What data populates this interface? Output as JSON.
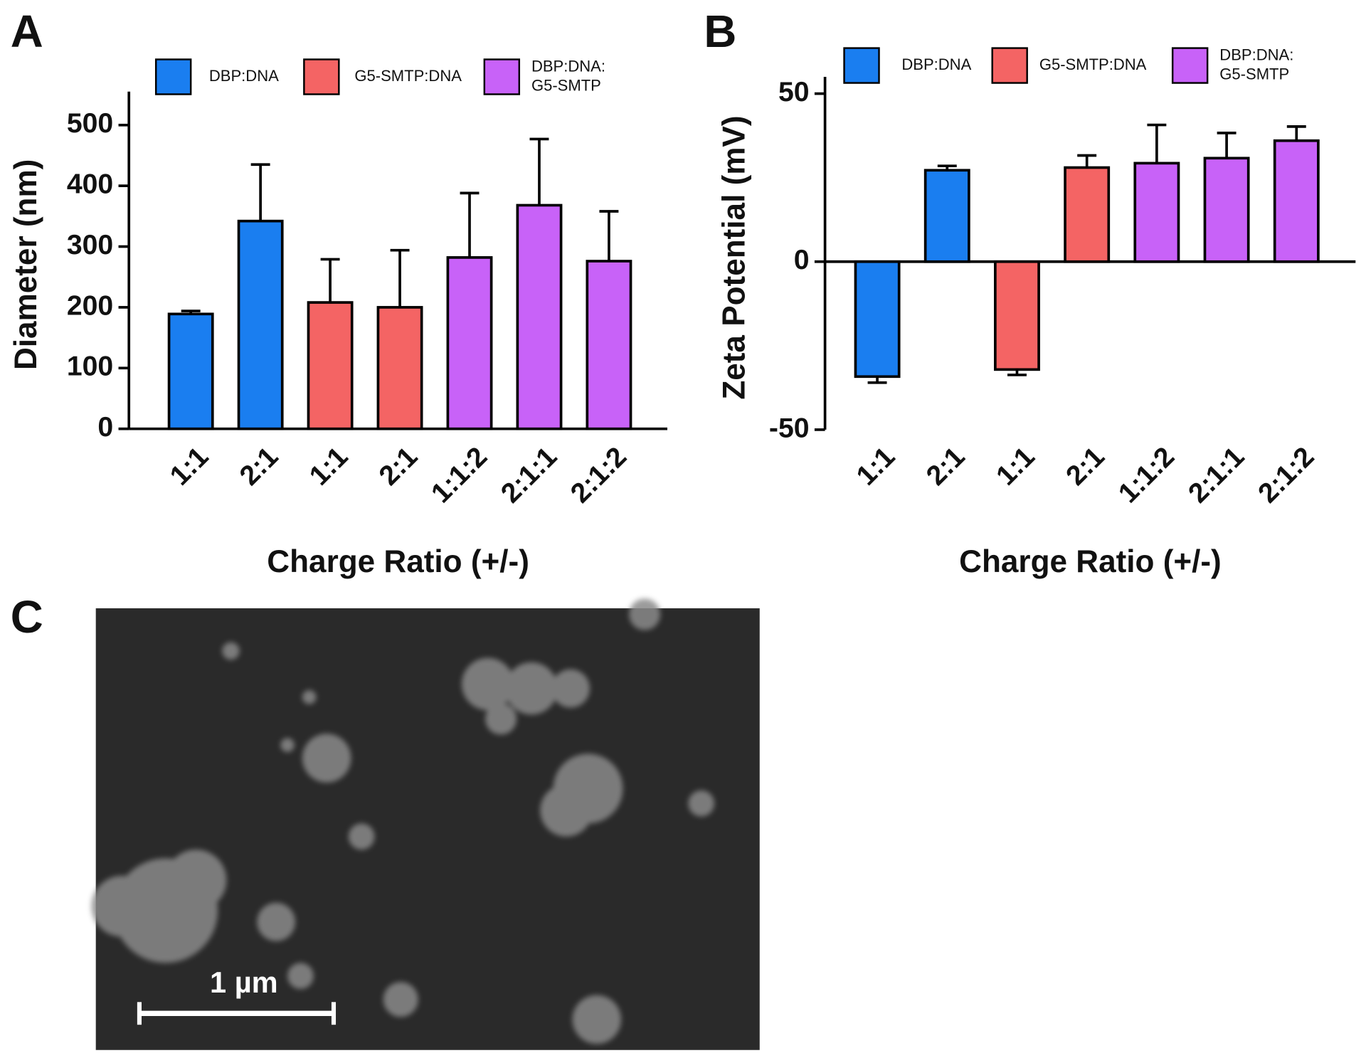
{
  "chart_data": [
    {
      "type": "bar",
      "panel_label": "A",
      "y_label": "Diameter (nm)",
      "x_label": "Charge Ratio (+/-)",
      "categories": [
        "1:1",
        "2:1",
        "1:1",
        "2:1",
        "1:1:2",
        "2:1:1",
        "2:1:2"
      ],
      "series": [
        {
          "name": "DBP:DNA",
          "color": "#1a7ef0",
          "values": [
            189,
            342,
            null,
            null,
            null,
            null,
            null
          ],
          "errors": [
            5,
            93,
            null,
            null,
            null,
            null,
            null
          ]
        },
        {
          "name": "G5-SMTP:DNA",
          "color": "#f46464",
          "values": [
            null,
            null,
            208,
            200,
            null,
            null,
            null
          ],
          "errors": [
            null,
            null,
            71,
            94,
            null,
            null,
            null
          ]
        },
        {
          "name": "DBP:DNA: G5-SMTP",
          "color": "#c862f8",
          "values": [
            null,
            null,
            null,
            null,
            282,
            368,
            276
          ],
          "errors": [
            null,
            null,
            null,
            null,
            106,
            109,
            82
          ]
        }
      ],
      "ylim": [
        0,
        555
      ],
      "yticks": [
        0,
        100,
        200,
        300,
        400,
        500
      ]
    },
    {
      "type": "bar",
      "panel_label": "B",
      "y_label": "Zeta Potential (mV)",
      "x_label": "Charge Ratio (+/-)",
      "categories": [
        "1:1",
        "2:1",
        "1:1",
        "2:1",
        "1:1:2",
        "2:1:1",
        "2:1:2"
      ],
      "series": [
        {
          "name": "DBP:DNA",
          "color": "#1a7ef0",
          "values": [
            -34.2,
            27.2,
            null,
            null,
            null,
            null,
            null
          ],
          "errors": [
            1.8,
            1.3,
            null,
            null,
            null,
            null,
            null
          ]
        },
        {
          "name": "G5-SMTP:DNA",
          "color": "#f46464",
          "values": [
            null,
            null,
            -32.1,
            28,
            null,
            null,
            null
          ],
          "errors": [
            null,
            null,
            1.6,
            3.6,
            null,
            null,
            null
          ]
        },
        {
          "name": "DBP:DNA: G5-SMTP",
          "color": "#c862f8",
          "values": [
            null,
            null,
            null,
            null,
            29.3,
            30.8,
            36
          ],
          "errors": [
            null,
            null,
            null,
            null,
            11.4,
            7.5,
            4.2
          ]
        }
      ],
      "ylim": [
        -50,
        55
      ],
      "yticks": [
        -50,
        0,
        50
      ]
    }
  ],
  "image_panel": {
    "panel_label": "C",
    "scale_bar": "1 µm"
  }
}
